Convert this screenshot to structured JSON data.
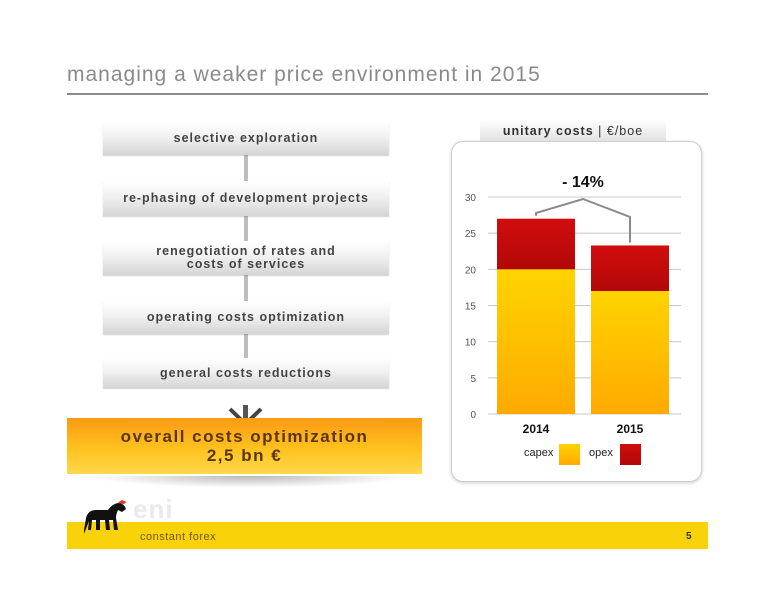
{
  "page": {
    "title": "managing a weaker price environment in 2015",
    "footer_note": "constant forex",
    "page_number": "5"
  },
  "steps": [
    {
      "label": "selective exploration"
    },
    {
      "label": "re-phasing of development  projects"
    },
    {
      "label_line1": "renegotiation of rates and",
      "label_line2": "costs of services"
    },
    {
      "label": "operating costs optimization"
    },
    {
      "label": "general costs reductions"
    }
  ],
  "result": {
    "line1": "overall costs optimization",
    "line2": "2,5 bn €"
  },
  "logo": {
    "text": "eni",
    "icon": "six-legged-dog-logo-icon"
  },
  "chart_tab": {
    "title": "unitary costs",
    "unit": "€/boe"
  },
  "chart_data": {
    "type": "bar",
    "stacked": true,
    "categories": [
      "2014",
      "2015"
    ],
    "series": [
      {
        "name": "capex",
        "values": [
          20,
          17
        ],
        "color": "#ffbf00"
      },
      {
        "name": "opex",
        "values": [
          7,
          6.3
        ],
        "color": "#d40f0f"
      }
    ],
    "ylim": [
      0,
      30
    ],
    "yticks": [
      0,
      5,
      10,
      15,
      20,
      25,
      30
    ],
    "grid": true,
    "legend_position": "bottom",
    "annotation": "- 14%"
  },
  "colors": {
    "accent_yellow": "#f9d209",
    "accent_orange": "#fb9a14",
    "opex_red": "#d40f0f",
    "capex_yellow": "#ffbf00"
  }
}
